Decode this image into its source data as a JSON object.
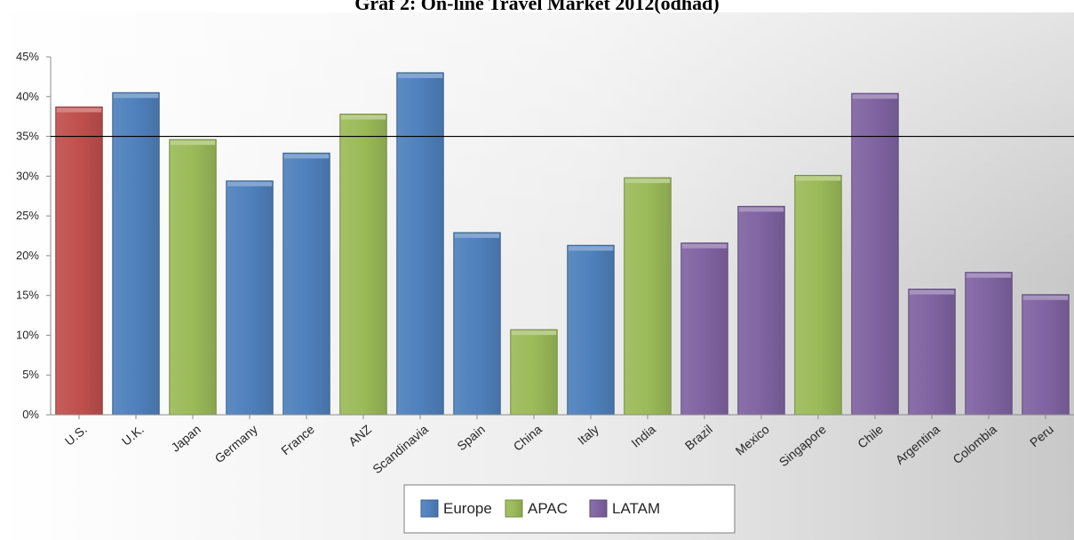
{
  "chart_data": {
    "type": "bar",
    "title": "Graf 2: On-line Travel Market 2012(odhad)",
    "categories": [
      "U.S.",
      "U.K.",
      "Japan",
      "Germany",
      "France",
      "ANZ",
      "Scandinavia",
      "Spain",
      "China",
      "Italy",
      "India",
      "Brazil",
      "Mexico",
      "Singapore",
      "Chile",
      "Argentina",
      "Colombia",
      "Peru"
    ],
    "values": [
      38.7,
      40.5,
      34.6,
      29.4,
      32.9,
      37.8,
      43.0,
      22.9,
      10.7,
      21.3,
      29.8,
      21.6,
      26.2,
      30.1,
      40.4,
      15.8,
      17.9,
      15.1
    ],
    "groups": [
      "US",
      "Europe",
      "APAC",
      "Europe",
      "Europe",
      "APAC",
      "Europe",
      "Europe",
      "APAC",
      "Europe",
      "APAC",
      "LATAM",
      "LATAM",
      "APAC",
      "LATAM",
      "LATAM",
      "LATAM",
      "LATAM"
    ],
    "group_colors": {
      "US": "#c0504d",
      "Europe": "#4f81bd",
      "APAC": "#9bbb59",
      "LATAM": "#8064a2"
    },
    "legend": [
      {
        "name": "Europe",
        "color": "#4f81bd"
      },
      {
        "name": "APAC",
        "color": "#9bbb59"
      },
      {
        "name": "LATAM",
        "color": "#8064a2"
      }
    ],
    "legend_position": "bottom-center",
    "ylim": [
      0,
      45
    ],
    "yticks": [
      0,
      5,
      10,
      15,
      20,
      25,
      30,
      35,
      40,
      45
    ],
    "ytick_labels": [
      "0%",
      "5%",
      "10%",
      "15%",
      "20%",
      "25%",
      "30%",
      "35%",
      "40%",
      "45%"
    ],
    "reference_line": 35,
    "grid": false
  }
}
